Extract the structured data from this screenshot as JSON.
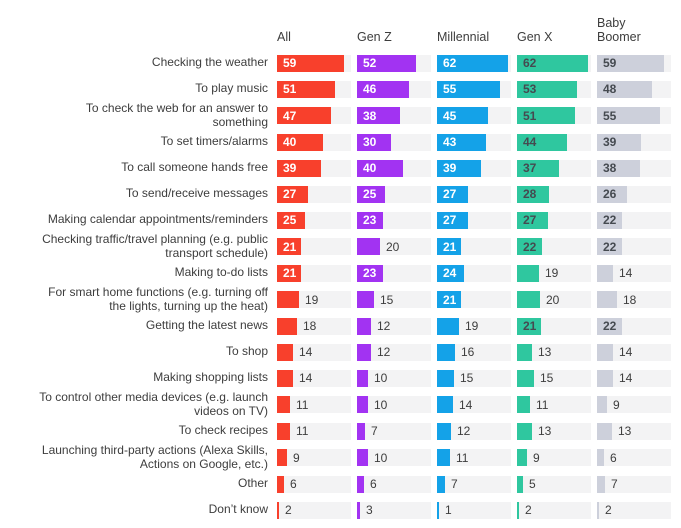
{
  "columns": [
    {
      "label": "All",
      "color": "#f8402c",
      "text_in_bar": "#ffffff"
    },
    {
      "label": "Gen Z",
      "color": "#a233f2",
      "text_in_bar": "#ffffff"
    },
    {
      "label": "Millennial",
      "color": "#14a2e8",
      "text_in_bar": "#ffffff"
    },
    {
      "label": "Gen X",
      "color": "#2fc79f",
      "text_in_bar": "#454a50"
    },
    {
      "label": "Baby Boomer",
      "color": "#cdd0db",
      "text_in_bar": "#454a50"
    }
  ],
  "chart_data": {
    "type": "bar",
    "orientation": "horizontal",
    "title": "",
    "xlabel": "",
    "ylabel": "",
    "xlim": [
      0,
      65
    ],
    "track_color": "#f3f3f4",
    "value_label_inside_threshold": 21,
    "categories": [
      "Checking the weather",
      "To play music",
      "To check the web for an answer to\nsomething",
      "To set timers/alarms",
      "To call someone hands free",
      "To send/receive messages",
      "Making calendar appointments/reminders",
      "Checking traffic/travel planning (e.g. public\ntransport schedule)",
      "Making to-do lists",
      "For smart home functions (e.g. turning off\nthe lights, turning up the heat)",
      "Getting the latest news",
      "To shop",
      "Making shopping lists",
      "To control other media devices (e.g. launch\nvideos on TV)",
      "To check recipes",
      "Launching third-party actions (Alexa Skills,\nActions on Google, etc.)",
      "Other",
      "Don’t know"
    ],
    "series": [
      {
        "name": "All",
        "values": [
          59,
          51,
          47,
          40,
          39,
          27,
          25,
          21,
          21,
          19,
          18,
          14,
          14,
          11,
          11,
          9,
          6,
          2
        ]
      },
      {
        "name": "Gen Z",
        "values": [
          52,
          46,
          38,
          30,
          40,
          25,
          23,
          20,
          23,
          15,
          12,
          12,
          10,
          10,
          7,
          10,
          6,
          3
        ]
      },
      {
        "name": "Millennial",
        "values": [
          62,
          55,
          45,
          43,
          39,
          27,
          27,
          21,
          24,
          21,
          19,
          16,
          15,
          14,
          12,
          11,
          7,
          1
        ]
      },
      {
        "name": "Gen X",
        "values": [
          62,
          53,
          51,
          44,
          37,
          28,
          27,
          22,
          19,
          20,
          21,
          13,
          15,
          11,
          13,
          9,
          5,
          2
        ]
      },
      {
        "name": "Baby Boomer",
        "values": [
          59,
          48,
          55,
          39,
          38,
          26,
          22,
          22,
          14,
          18,
          22,
          14,
          14,
          9,
          13,
          6,
          7,
          2
        ]
      }
    ]
  }
}
